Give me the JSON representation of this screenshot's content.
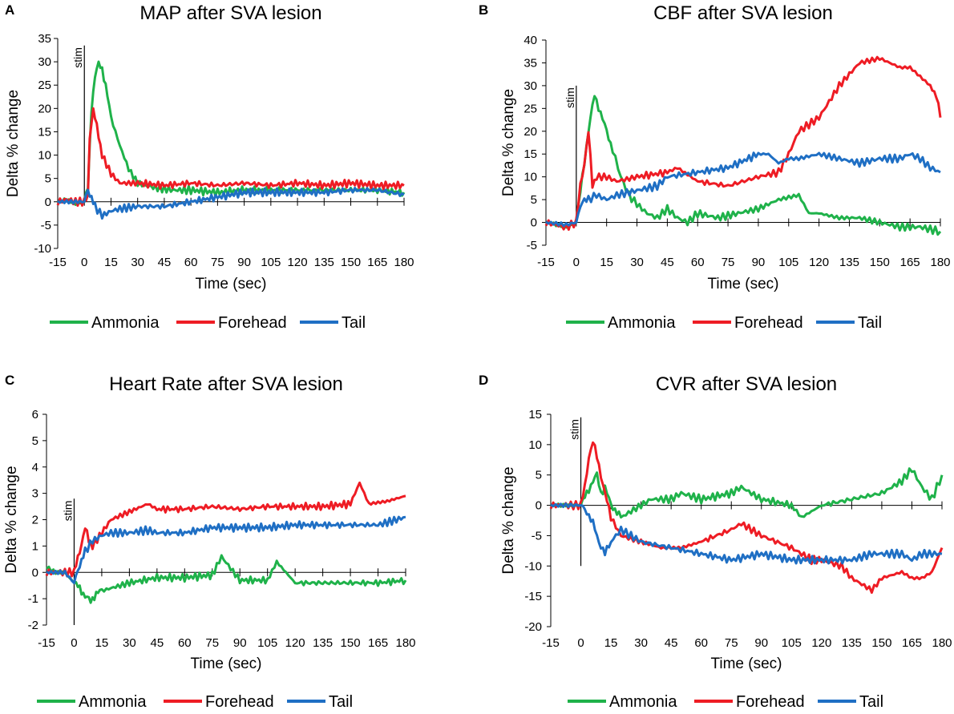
{
  "figure": {
    "name": "SVA lesion responses",
    "colors": {
      "Ammonia": "#1fb24a",
      "Forehead": "#ee1c24",
      "Tail": "#1f6fc4",
      "axis": "#000000"
    }
  },
  "chart_data": [
    {
      "panel": "A",
      "type": "line",
      "title": "MAP after SVA lesion",
      "xlabel": "Time (sec)",
      "ylabel": "Delta % change",
      "xlim": [
        -15,
        180
      ],
      "ylim": [
        -10,
        35
      ],
      "xticks": [
        -15,
        0,
        15,
        30,
        45,
        60,
        75,
        90,
        105,
        120,
        135,
        150,
        165,
        180
      ],
      "yticks": [
        -10,
        -5,
        0,
        5,
        10,
        15,
        20,
        25,
        30,
        35
      ],
      "annotation": "stim",
      "stim_line": {
        "x": 0,
        "y_top": 33.5,
        "y_bottom": 0
      },
      "legend": [
        "Ammonia",
        "Forehead",
        "Tail"
      ],
      "series": [
        {
          "name": "Ammonia",
          "x": [
            -15,
            -10,
            -5,
            0,
            2,
            4,
            6,
            8,
            10,
            12,
            15,
            20,
            25,
            30,
            40,
            50,
            60,
            75,
            90,
            105,
            120,
            135,
            150,
            165,
            180
          ],
          "y": [
            0,
            0.5,
            -0.5,
            0,
            3,
            20,
            27,
            29.5,
            28.5,
            25,
            18,
            12,
            7,
            4,
            3,
            2.5,
            2.5,
            2,
            2.5,
            2.5,
            2.5,
            2.5,
            2.5,
            2.5,
            2
          ]
        },
        {
          "name": "Forehead",
          "x": [
            -15,
            -10,
            -5,
            0,
            2,
            3,
            5,
            7,
            10,
            15,
            20,
            30,
            45,
            60,
            75,
            90,
            105,
            120,
            135,
            150,
            165,
            180
          ],
          "y": [
            0,
            0.5,
            0,
            0,
            1,
            14,
            20,
            16,
            10,
            6,
            4,
            4,
            3.5,
            4,
            3.5,
            4,
            3.5,
            4,
            3.5,
            4,
            3.5,
            3.5
          ]
        },
        {
          "name": "Tail",
          "x": [
            -15,
            -5,
            0,
            2,
            4,
            6,
            10,
            15,
            20,
            30,
            45,
            60,
            75,
            90,
            105,
            120,
            135,
            150,
            165,
            180
          ],
          "y": [
            0,
            0,
            0,
            2.5,
            1,
            -1,
            -3,
            -2,
            -1.5,
            -1,
            -1,
            0,
            1,
            2,
            2,
            2,
            2,
            2.5,
            2.5,
            1.5
          ]
        }
      ]
    },
    {
      "panel": "B",
      "type": "line",
      "title": "CBF after SVA lesion",
      "xlabel": "Time (sec)",
      "ylabel": "Delta % change",
      "xlim": [
        -15,
        180
      ],
      "ylim": [
        -5,
        40
      ],
      "xticks": [
        -15,
        0,
        15,
        30,
        45,
        60,
        75,
        90,
        105,
        120,
        135,
        150,
        165,
        180
      ],
      "yticks": [
        -5,
        0,
        5,
        10,
        15,
        20,
        25,
        30,
        35,
        40
      ],
      "annotation": "stim",
      "stim_line": {
        "x": 0,
        "y_top": 30,
        "y_bottom": 0
      },
      "legend": [
        "Ammonia",
        "Forehead",
        "Tail"
      ],
      "series": [
        {
          "name": "Ammonia",
          "x": [
            -15,
            -5,
            0,
            3,
            6,
            9,
            12,
            15,
            18,
            22,
            26,
            30,
            35,
            40,
            45,
            50,
            55,
            60,
            70,
            80,
            90,
            100,
            110,
            115,
            120,
            130,
            140,
            150,
            160,
            170,
            180
          ],
          "y": [
            0,
            -1,
            0,
            10,
            20,
            28,
            24,
            20,
            16,
            10,
            6,
            4,
            2,
            1,
            3,
            1,
            0,
            2,
            1,
            2,
            3,
            5,
            6,
            2,
            2,
            1,
            1,
            0,
            -1,
            -1,
            -2
          ]
        },
        {
          "name": "Forehead",
          "x": [
            -15,
            -5,
            0,
            2,
            4,
            6,
            8,
            10,
            15,
            20,
            30,
            45,
            50,
            60,
            75,
            90,
            100,
            105,
            110,
            120,
            130,
            140,
            150,
            160,
            165,
            170,
            175,
            178,
            180
          ],
          "y": [
            0,
            -1,
            0,
            8,
            13,
            20,
            8,
            10,
            10,
            9,
            10,
            11,
            12,
            9,
            8,
            10,
            11,
            15,
            20,
            23,
            30,
            35,
            36,
            34,
            34,
            32,
            30,
            28,
            23
          ]
        },
        {
          "name": "Tail",
          "x": [
            -15,
            -5,
            0,
            3,
            6,
            10,
            15,
            20,
            30,
            40,
            45,
            60,
            75,
            90,
            95,
            100,
            105,
            110,
            120,
            130,
            140,
            150,
            160,
            165,
            170,
            175,
            180
          ],
          "y": [
            0,
            -0.5,
            0,
            5,
            5,
            6,
            5,
            6,
            7,
            8,
            10,
            11,
            12,
            15,
            15,
            13,
            14,
            14,
            15,
            14,
            13,
            14,
            14,
            15,
            14,
            12,
            11
          ]
        }
      ]
    },
    {
      "panel": "C",
      "type": "line",
      "title": "Heart Rate after SVA lesion",
      "xlabel": "Time (sec)",
      "ylabel": "Delta % change",
      "xlim": [
        -15,
        180
      ],
      "ylim": [
        -2,
        6
      ],
      "xticks": [
        -15,
        0,
        15,
        30,
        45,
        60,
        75,
        90,
        105,
        120,
        135,
        150,
        165,
        180
      ],
      "yticks": [
        -2,
        -1,
        0,
        1,
        2,
        3,
        4,
        5,
        6
      ],
      "annotation": "stim",
      "stim_line": {
        "x": 0,
        "y_top": 2.8,
        "y_bottom": -2
      },
      "legend": [
        "Ammonia",
        "Forehead",
        "Tail"
      ],
      "series": [
        {
          "name": "Ammonia",
          "x": [
            -15,
            -10,
            -5,
            0,
            3,
            6,
            9,
            12,
            15,
            20,
            30,
            45,
            60,
            75,
            80,
            90,
            105,
            110,
            120,
            135,
            150,
            165,
            180
          ],
          "y": [
            0.2,
            0,
            0,
            -0.4,
            -0.6,
            -0.9,
            -1.1,
            -0.8,
            -0.7,
            -0.6,
            -0.4,
            -0.2,
            -0.2,
            -0.1,
            0.6,
            -0.3,
            -0.3,
            0.4,
            -0.4,
            -0.4,
            -0.4,
            -0.4,
            -0.3
          ]
        },
        {
          "name": "Forehead",
          "x": [
            -15,
            -5,
            0,
            3,
            6,
            8,
            10,
            15,
            20,
            30,
            40,
            45,
            60,
            75,
            90,
            105,
            120,
            135,
            150,
            155,
            160,
            170,
            180
          ],
          "y": [
            0,
            0,
            0,
            0.8,
            1.7,
            1.2,
            1.0,
            1.5,
            2.0,
            2.3,
            2.6,
            2.4,
            2.4,
            2.5,
            2.4,
            2.5,
            2.5,
            2.5,
            2.6,
            3.4,
            2.6,
            2.7,
            2.9
          ]
        },
        {
          "name": "Tail",
          "x": [
            -15,
            -5,
            0,
            3,
            6,
            10,
            15,
            20,
            30,
            40,
            45,
            60,
            75,
            90,
            105,
            120,
            135,
            150,
            165,
            175,
            180
          ],
          "y": [
            0,
            0,
            -0.4,
            0.3,
            0.8,
            1.2,
            1.4,
            1.5,
            1.5,
            1.6,
            1.5,
            1.5,
            1.7,
            1.7,
            1.7,
            1.8,
            1.8,
            1.8,
            1.8,
            2.0,
            2.1
          ]
        }
      ]
    },
    {
      "panel": "D",
      "type": "line",
      "title": "CVR after SVA lesion",
      "xlabel": "Time (sec)",
      "ylabel": "Delta % change",
      "xlim": [
        -15,
        180
      ],
      "ylim": [
        -20,
        15
      ],
      "xticks": [
        -15,
        0,
        15,
        30,
        45,
        60,
        75,
        90,
        105,
        120,
        135,
        150,
        165,
        180
      ],
      "yticks": [
        -20,
        -15,
        -10,
        -5,
        0,
        5,
        10,
        15
      ],
      "annotation": "stim",
      "stim_line": {
        "x": 0,
        "y_top": 14.5,
        "y_bottom": -10
      },
      "legend": [
        "Ammonia",
        "Forehead",
        "Tail"
      ],
      "series": [
        {
          "name": "Ammonia",
          "x": [
            -15,
            -5,
            0,
            3,
            6,
            8,
            10,
            12,
            15,
            18,
            20,
            25,
            30,
            35,
            45,
            50,
            60,
            75,
            80,
            90,
            105,
            110,
            120,
            135,
            150,
            160,
            165,
            170,
            175,
            180
          ],
          "y": [
            0,
            0,
            0,
            2,
            4,
            5,
            2,
            3,
            0,
            -1,
            -2,
            -1,
            0,
            1,
            1,
            2,
            1,
            2,
            3,
            1,
            0,
            -2,
            0,
            1,
            2,
            4,
            6,
            3,
            1,
            5
          ]
        },
        {
          "name": "Forehead",
          "x": [
            -15,
            -5,
            0,
            2,
            4,
            6,
            8,
            10,
            12,
            15,
            20,
            30,
            40,
            50,
            60,
            75,
            80,
            90,
            105,
            115,
            120,
            130,
            135,
            145,
            150,
            160,
            165,
            170,
            175,
            180
          ],
          "y": [
            0,
            0,
            0,
            3,
            8,
            10.5,
            8,
            5,
            2,
            -2,
            -5,
            -6,
            -7,
            -7,
            -6,
            -4,
            -3,
            -5,
            -7,
            -9,
            -9,
            -10,
            -12,
            -14,
            -12,
            -11,
            -12,
            -12,
            -11,
            -7
          ]
        },
        {
          "name": "Tail",
          "x": [
            -15,
            -5,
            0,
            3,
            6,
            9,
            12,
            15,
            20,
            30,
            45,
            60,
            75,
            90,
            105,
            120,
            135,
            145,
            150,
            160,
            165,
            170,
            175,
            180
          ],
          "y": [
            0,
            0,
            0,
            -1,
            -3,
            -6,
            -8,
            -6,
            -4,
            -6,
            -7,
            -8,
            -9,
            -8,
            -9,
            -9,
            -9,
            -8,
            -8,
            -8,
            -9,
            -8,
            -8,
            -8
          ]
        }
      ]
    }
  ]
}
